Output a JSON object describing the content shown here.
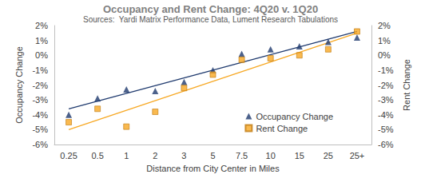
{
  "chart_data": {
    "type": "scatter",
    "title": "Occupancy and Rent Change: 4Q20 v. 1Q20",
    "subtitle": "Sources:  Yardi Matrix Performance Data, Lument Research Tabulations",
    "x_label": "Distance from City Center in Miles",
    "y_label": "Occupancy Change",
    "y2_label": "Rent Change",
    "categories": [
      "0.25",
      "0.5",
      "1",
      "2",
      "3",
      "5",
      "7.5",
      "10",
      "15",
      "25",
      "25+"
    ],
    "series": [
      {
        "name": "Occupancy Change",
        "color": "#1f3a6e",
        "marker": "triangle",
        "values": [
          -4.0,
          -2.9,
          -2.3,
          -2.4,
          -1.8,
          -1.0,
          0.1,
          0.4,
          0.6,
          0.9,
          1.2
        ],
        "trend": [
          -3.6,
          1.6
        ]
      },
      {
        "name": "Rent Change",
        "color": "#f7a823",
        "marker": "square",
        "axis": "y2",
        "values": [
          -4.5,
          -3.6,
          -4.8,
          -3.8,
          -2.2,
          -1.3,
          -0.3,
          -0.2,
          0.0,
          0.4,
          1.6
        ],
        "trend": [
          -5.0,
          1.5
        ]
      }
    ],
    "ylim": [
      -6,
      2
    ],
    "yticks": [
      {
        "value": -6,
        "label": "-6%"
      },
      {
        "value": -5,
        "label": "-5%"
      },
      {
        "value": -4,
        "label": "-4%"
      },
      {
        "value": -3,
        "label": "-3%"
      },
      {
        "value": -2,
        "label": "-2%"
      },
      {
        "value": -1,
        "label": "-1%"
      },
      {
        "value": 0,
        "label": "0%"
      },
      {
        "value": 1,
        "label": "1%"
      },
      {
        "value": 2,
        "label": "2%"
      }
    ],
    "y2lim": [
      -6,
      2
    ],
    "y2ticks": [
      {
        "value": -6,
        "label": "-6%"
      },
      {
        "value": -5,
        "label": "-5%"
      },
      {
        "value": -4,
        "label": "-4%"
      },
      {
        "value": -3,
        "label": "-3%"
      },
      {
        "value": -2,
        "label": "-2%"
      },
      {
        "value": -1,
        "label": "-1%"
      },
      {
        "value": 0,
        "label": "0%"
      },
      {
        "value": 1,
        "label": "1%"
      },
      {
        "value": 2,
        "label": "2%"
      }
    ],
    "grid": false,
    "legend": "lower right"
  }
}
